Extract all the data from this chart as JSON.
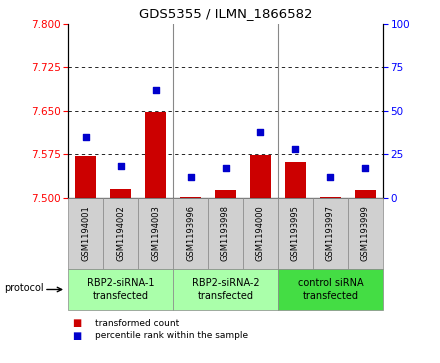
{
  "title": "GDS5355 / ILMN_1866582",
  "samples": [
    "GSM1194001",
    "GSM1194002",
    "GSM1194003",
    "GSM1193996",
    "GSM1193998",
    "GSM1194000",
    "GSM1193995",
    "GSM1193997",
    "GSM1193999"
  ],
  "bar_values": [
    7.572,
    7.516,
    7.648,
    7.502,
    7.514,
    7.573,
    7.561,
    7.502,
    7.513
  ],
  "dot_values": [
    35,
    18,
    62,
    12,
    17,
    38,
    28,
    12,
    17
  ],
  "ylim_left": [
    7.5,
    7.8
  ],
  "ylim_right": [
    0,
    100
  ],
  "yticks_left": [
    7.5,
    7.575,
    7.65,
    7.725,
    7.8
  ],
  "yticks_right": [
    0,
    25,
    50,
    75,
    100
  ],
  "bar_color": "#cc0000",
  "dot_color": "#0000cc",
  "sample_bg": "#d0d0d0",
  "groups": [
    {
      "label": "RBP2-siRNA-1\ntransfected",
      "start": 0,
      "end": 2,
      "color": "#aaffaa"
    },
    {
      "label": "RBP2-siRNA-2\ntransfected",
      "start": 3,
      "end": 5,
      "color": "#aaffaa"
    },
    {
      "label": "control siRNA\ntransfected",
      "start": 6,
      "end": 8,
      "color": "#44dd44"
    }
  ],
  "legend_bar_label": "transformed count",
  "legend_dot_label": "percentile rank within the sample",
  "protocol_label": "protocol",
  "bar_base": 7.5,
  "fig_width": 4.4,
  "fig_height": 3.63,
  "dpi": 100
}
